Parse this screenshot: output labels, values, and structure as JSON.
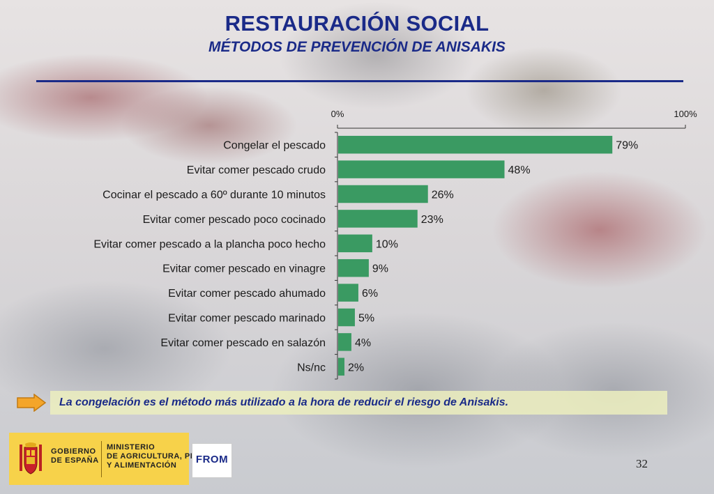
{
  "slide": {
    "title": "RESTAURACIÓN SOCIAL",
    "subtitle": "MÉTODOS DE PREVENCIÓN DE ANISAKIS",
    "callout": "La congelación es el método más utilizado a la hora de reducir el riesgo de Anisakis.",
    "page_number": "32"
  },
  "footer": {
    "gobierno_line1": "GOBIERNO",
    "gobierno_line2": "DE ESPAÑA",
    "ministerio_line1": "MINISTERIO",
    "ministerio_line2": "DE AGRICULTURA, PESCA",
    "ministerio_line3": "Y ALIMENTACIÓN",
    "frm_logo": "FROM"
  },
  "colors": {
    "bar": "#3a9a62",
    "title": "#1a2a88",
    "callout_bg": "#eceebe",
    "footer_band": "#f7d24a"
  },
  "chart_data": {
    "type": "bar",
    "orientation": "horizontal",
    "categories": [
      "Congelar el pescado",
      "Evitar comer pescado crudo",
      "Cocinar el pescado a 60º durante 10 minutos",
      "Evitar comer pescado poco cocinado",
      "Evitar comer pescado a la plancha poco hecho",
      "Evitar comer pescado en vinagre",
      "Evitar comer pescado ahumado",
      "Evitar comer pescado marinado",
      "Evitar comer pescado en salazón",
      "Ns/nc"
    ],
    "values": [
      79,
      48,
      26,
      23,
      10,
      9,
      6,
      5,
      4,
      2
    ],
    "value_labels": [
      "79%",
      "48%",
      "26%",
      "23%",
      "10%",
      "9%",
      "6%",
      "5%",
      "4%",
      "2%"
    ],
    "tick_labels": [
      "0%",
      "100%"
    ],
    "xlim": [
      0,
      100
    ],
    "axis_position": "top",
    "grid": false,
    "legend": "none"
  }
}
